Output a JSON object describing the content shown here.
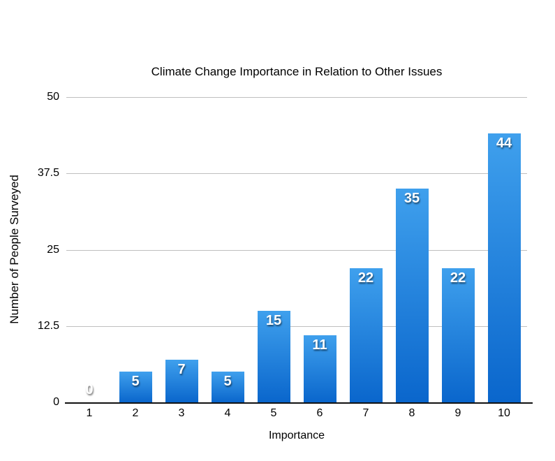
{
  "chart_data": {
    "type": "bar",
    "title": "Climate Change Importance in Relation to Other Issues",
    "xlabel": "Importance",
    "ylabel": "Number of People Surveyed",
    "categories": [
      "1",
      "2",
      "3",
      "4",
      "5",
      "6",
      "7",
      "8",
      "9",
      "10"
    ],
    "values": [
      0,
      5,
      7,
      5,
      15,
      11,
      22,
      35,
      22,
      44
    ],
    "value_labels": [
      "0",
      "5",
      "7",
      "5",
      "15",
      "11",
      "22",
      "35",
      "22",
      "44"
    ],
    "ylim": [
      0,
      50
    ],
    "yticks": [
      0,
      12.5,
      25,
      37.5,
      50
    ],
    "ytick_labels": [
      "0",
      "12.5",
      "25",
      "37.5",
      "50"
    ],
    "grid": true,
    "legend": "none",
    "colors": {
      "bar_gradient_top": "#3FA0ED",
      "bar_gradient_bottom": "#0A66CC",
      "gridline": "#BFBFBF",
      "axis_line": "#111111",
      "text": "#000000",
      "value_label": "#FFFFFF"
    }
  }
}
